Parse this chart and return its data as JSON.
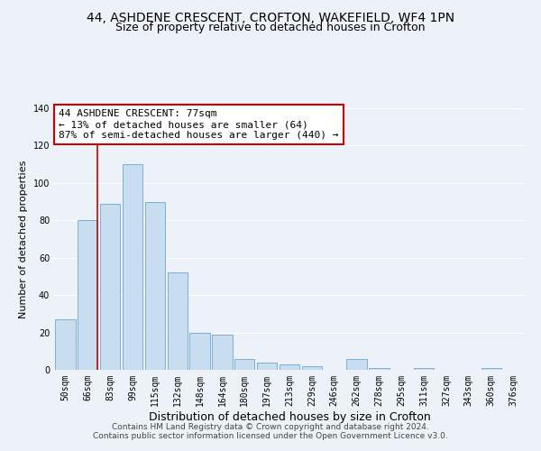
{
  "title": "44, ASHDENE CRESCENT, CROFTON, WAKEFIELD, WF4 1PN",
  "subtitle": "Size of property relative to detached houses in Crofton",
  "xlabel": "Distribution of detached houses by size in Crofton",
  "ylabel": "Number of detached properties",
  "bar_labels": [
    "50sqm",
    "66sqm",
    "83sqm",
    "99sqm",
    "115sqm",
    "132sqm",
    "148sqm",
    "164sqm",
    "180sqm",
    "197sqm",
    "213sqm",
    "229sqm",
    "246sqm",
    "262sqm",
    "278sqm",
    "295sqm",
    "311sqm",
    "327sqm",
    "343sqm",
    "360sqm",
    "376sqm"
  ],
  "bar_values": [
    27,
    80,
    89,
    110,
    90,
    52,
    20,
    19,
    6,
    4,
    3,
    2,
    0,
    6,
    1,
    0,
    1,
    0,
    0,
    1,
    0
  ],
  "bar_color": "#c8ddef",
  "bar_edge_color": "#7ab0d4",
  "vline_color": "#cc0000",
  "vline_pos": 1.43,
  "annotation_text": "44 ASHDENE CRESCENT: 77sqm\n← 13% of detached houses are smaller (64)\n87% of semi-detached houses are larger (440) →",
  "annotation_box_color": "#ffffff",
  "annotation_box_edge_color": "#cc0000",
  "ylim": [
    0,
    140
  ],
  "yticks": [
    0,
    20,
    40,
    60,
    80,
    100,
    120,
    140
  ],
  "footer1": "Contains HM Land Registry data © Crown copyright and database right 2024.",
  "footer2": "Contains public sector information licensed under the Open Government Licence v3.0.",
  "bg_color": "#edf2f9",
  "grid_color": "#ffffff",
  "title_fontsize": 10,
  "subtitle_fontsize": 9,
  "xlabel_fontsize": 9,
  "ylabel_fontsize": 8,
  "tick_fontsize": 7,
  "annotation_fontsize": 8,
  "footer_fontsize": 6.5
}
